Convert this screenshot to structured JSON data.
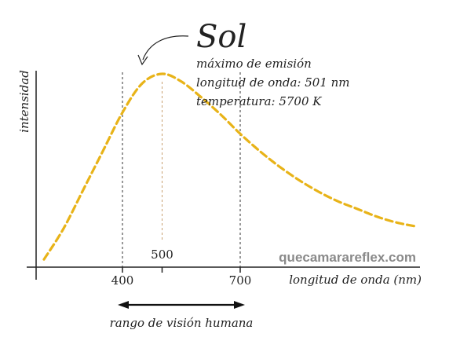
{
  "chart_data": {
    "type": "line",
    "title": "Sol",
    "xlabel": "longitud de onda (nm)",
    "ylabel": "intensidad",
    "annotation": {
      "line1": "máximo de emisión",
      "line2": "longitud de onda: 501 nm",
      "line3": "temperatura: 5700 K"
    },
    "peak": {
      "x": 501,
      "label": "500"
    },
    "x_ticks": [
      {
        "value": 400,
        "label": "400"
      },
      {
        "value": 700,
        "label": "700"
      }
    ],
    "visible_range": {
      "from": 400,
      "to": 700,
      "label": "rango de visión humana"
    },
    "xlim": [
      180,
      1200
    ],
    "ylim": [
      0,
      1
    ],
    "series": [
      {
        "style": "dashed",
        "x": [
          200,
          250,
          300,
          350,
          400,
          450,
          501,
          550,
          600,
          650,
          700,
          750,
          800,
          850,
          900,
          950,
          1000,
          1050,
          1100,
          1150
        ],
        "y": [
          0.04,
          0.2,
          0.4,
          0.6,
          0.8,
          0.95,
          1.0,
          0.96,
          0.88,
          0.79,
          0.69,
          0.6,
          0.52,
          0.45,
          0.39,
          0.34,
          0.3,
          0.26,
          0.23,
          0.21
        ]
      }
    ],
    "grid": false,
    "colors": {
      "curve": "#E8B318",
      "dotted": "#333333",
      "peak_line": "#C8A070",
      "axis": "#222222"
    }
  },
  "watermark": "quecamarareflex.com"
}
